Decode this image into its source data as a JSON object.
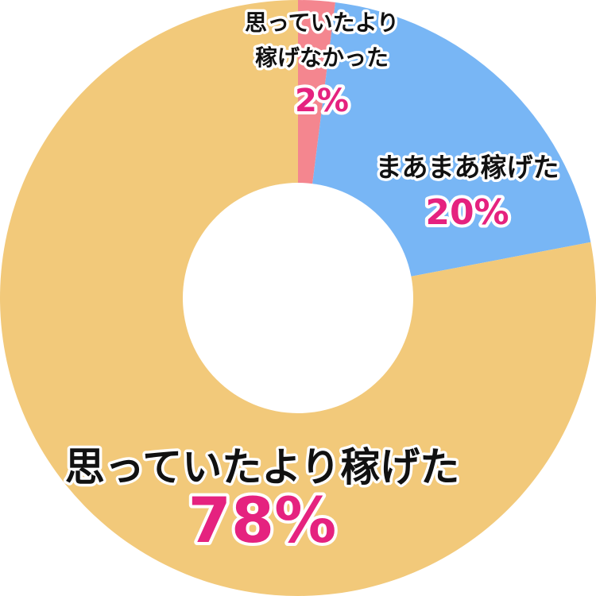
{
  "chart_data": {
    "type": "pie",
    "donut": true,
    "start": "top",
    "direction": "clockwise",
    "slices": [
      {
        "label_lines": [
          "思っていたより",
          "稼げなかった"
        ],
        "value": 2,
        "value_label": "2%",
        "color": "#f4868f"
      },
      {
        "label_lines": [
          "まあまあ稼げた"
        ],
        "value": 20,
        "value_label": "20%",
        "color": "#78b6f5"
      },
      {
        "label_lines": [
          "思っていたより稼げた"
        ],
        "value": 78,
        "value_label": "78%",
        "color": "#f2c97a"
      }
    ],
    "value_label_color": "#e5227f"
  }
}
